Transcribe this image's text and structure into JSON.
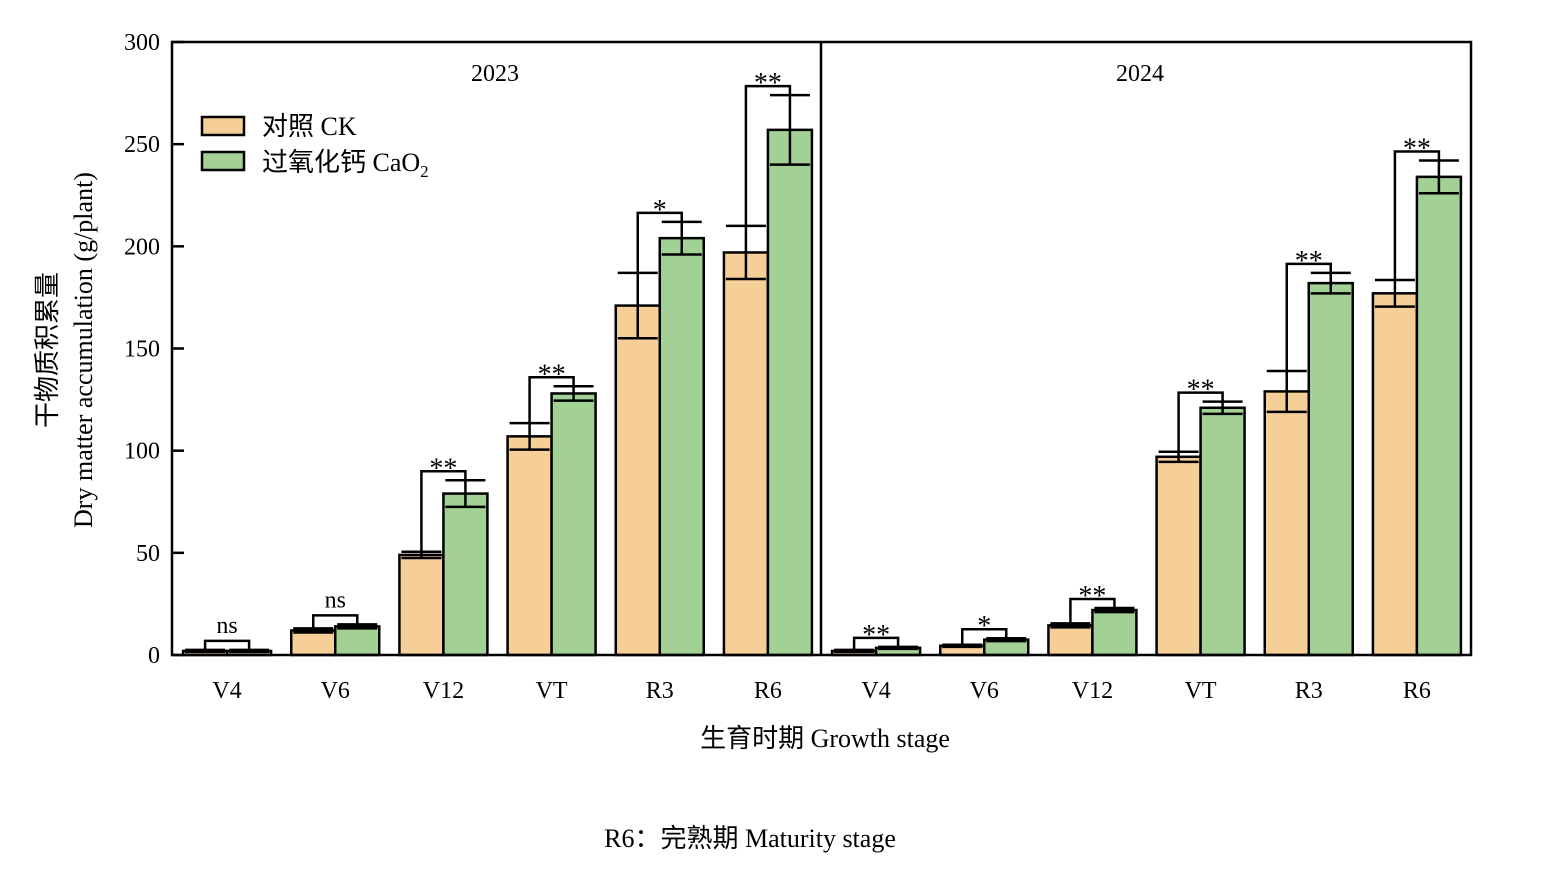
{
  "chart_data": [
    {
      "type": "bar",
      "panel": "2023",
      "title": "2023",
      "categories": [
        "V4",
        "V6",
        "V12",
        "VT",
        "R3",
        "R6"
      ],
      "series": [
        {
          "name": "对照 CK",
          "color": "#f6cf98",
          "values": [
            2,
            12,
            49,
            107,
            171,
            197
          ],
          "errors": [
            0.5,
            1,
            1.5,
            6.5,
            16,
            13
          ]
        },
        {
          "name": "过氧化钙 CaO2",
          "color": "#a3d195",
          "values": [
            2,
            14,
            79,
            128,
            204,
            257
          ],
          "errors": [
            0.5,
            1,
            6.5,
            3.5,
            8,
            17
          ]
        }
      ],
      "significance": [
        "ns",
        "ns",
        "**",
        "**",
        "*",
        "**"
      ]
    },
    {
      "type": "bar",
      "panel": "2024",
      "title": "2024",
      "categories": [
        "V4",
        "V6",
        "V12",
        "VT",
        "R3",
        "R6"
      ],
      "series": [
        {
          "name": "对照 CK",
          "color": "#f6cf98",
          "values": [
            2,
            4.5,
            14.5,
            97,
            129,
            177
          ],
          "errors": [
            0.5,
            0.5,
            1,
            2.5,
            10,
            6.5
          ]
        },
        {
          "name": "过氧化钙 CaO2",
          "color": "#a3d195",
          "values": [
            3.5,
            7.5,
            22,
            121,
            182,
            234
          ],
          "errors": [
            0.5,
            0.7,
            1,
            3,
            5,
            8
          ]
        }
      ],
      "significance": [
        "**",
        "*",
        "**",
        "**",
        "**",
        "**"
      ]
    }
  ],
  "axes": {
    "ylabel_cn": "干物质积累量",
    "ylabel_en": "Dry matter accumulation (g/plant)",
    "xlabel": "生育时期 Growth stage",
    "ylim": [
      0,
      300
    ],
    "yticks": [
      "0",
      "50",
      "100",
      "150",
      "200",
      "250",
      "300"
    ],
    "grid": false
  },
  "legend": {
    "placement": "top-left",
    "items": [
      {
        "label": "对照 CK",
        "color": "#f6cf98"
      },
      {
        "label_main": "过氧化钙 CaO",
        "label_sub": "2",
        "color": "#a3d195"
      }
    ]
  },
  "footnote": "R6：完熟期  Maturity stage"
}
